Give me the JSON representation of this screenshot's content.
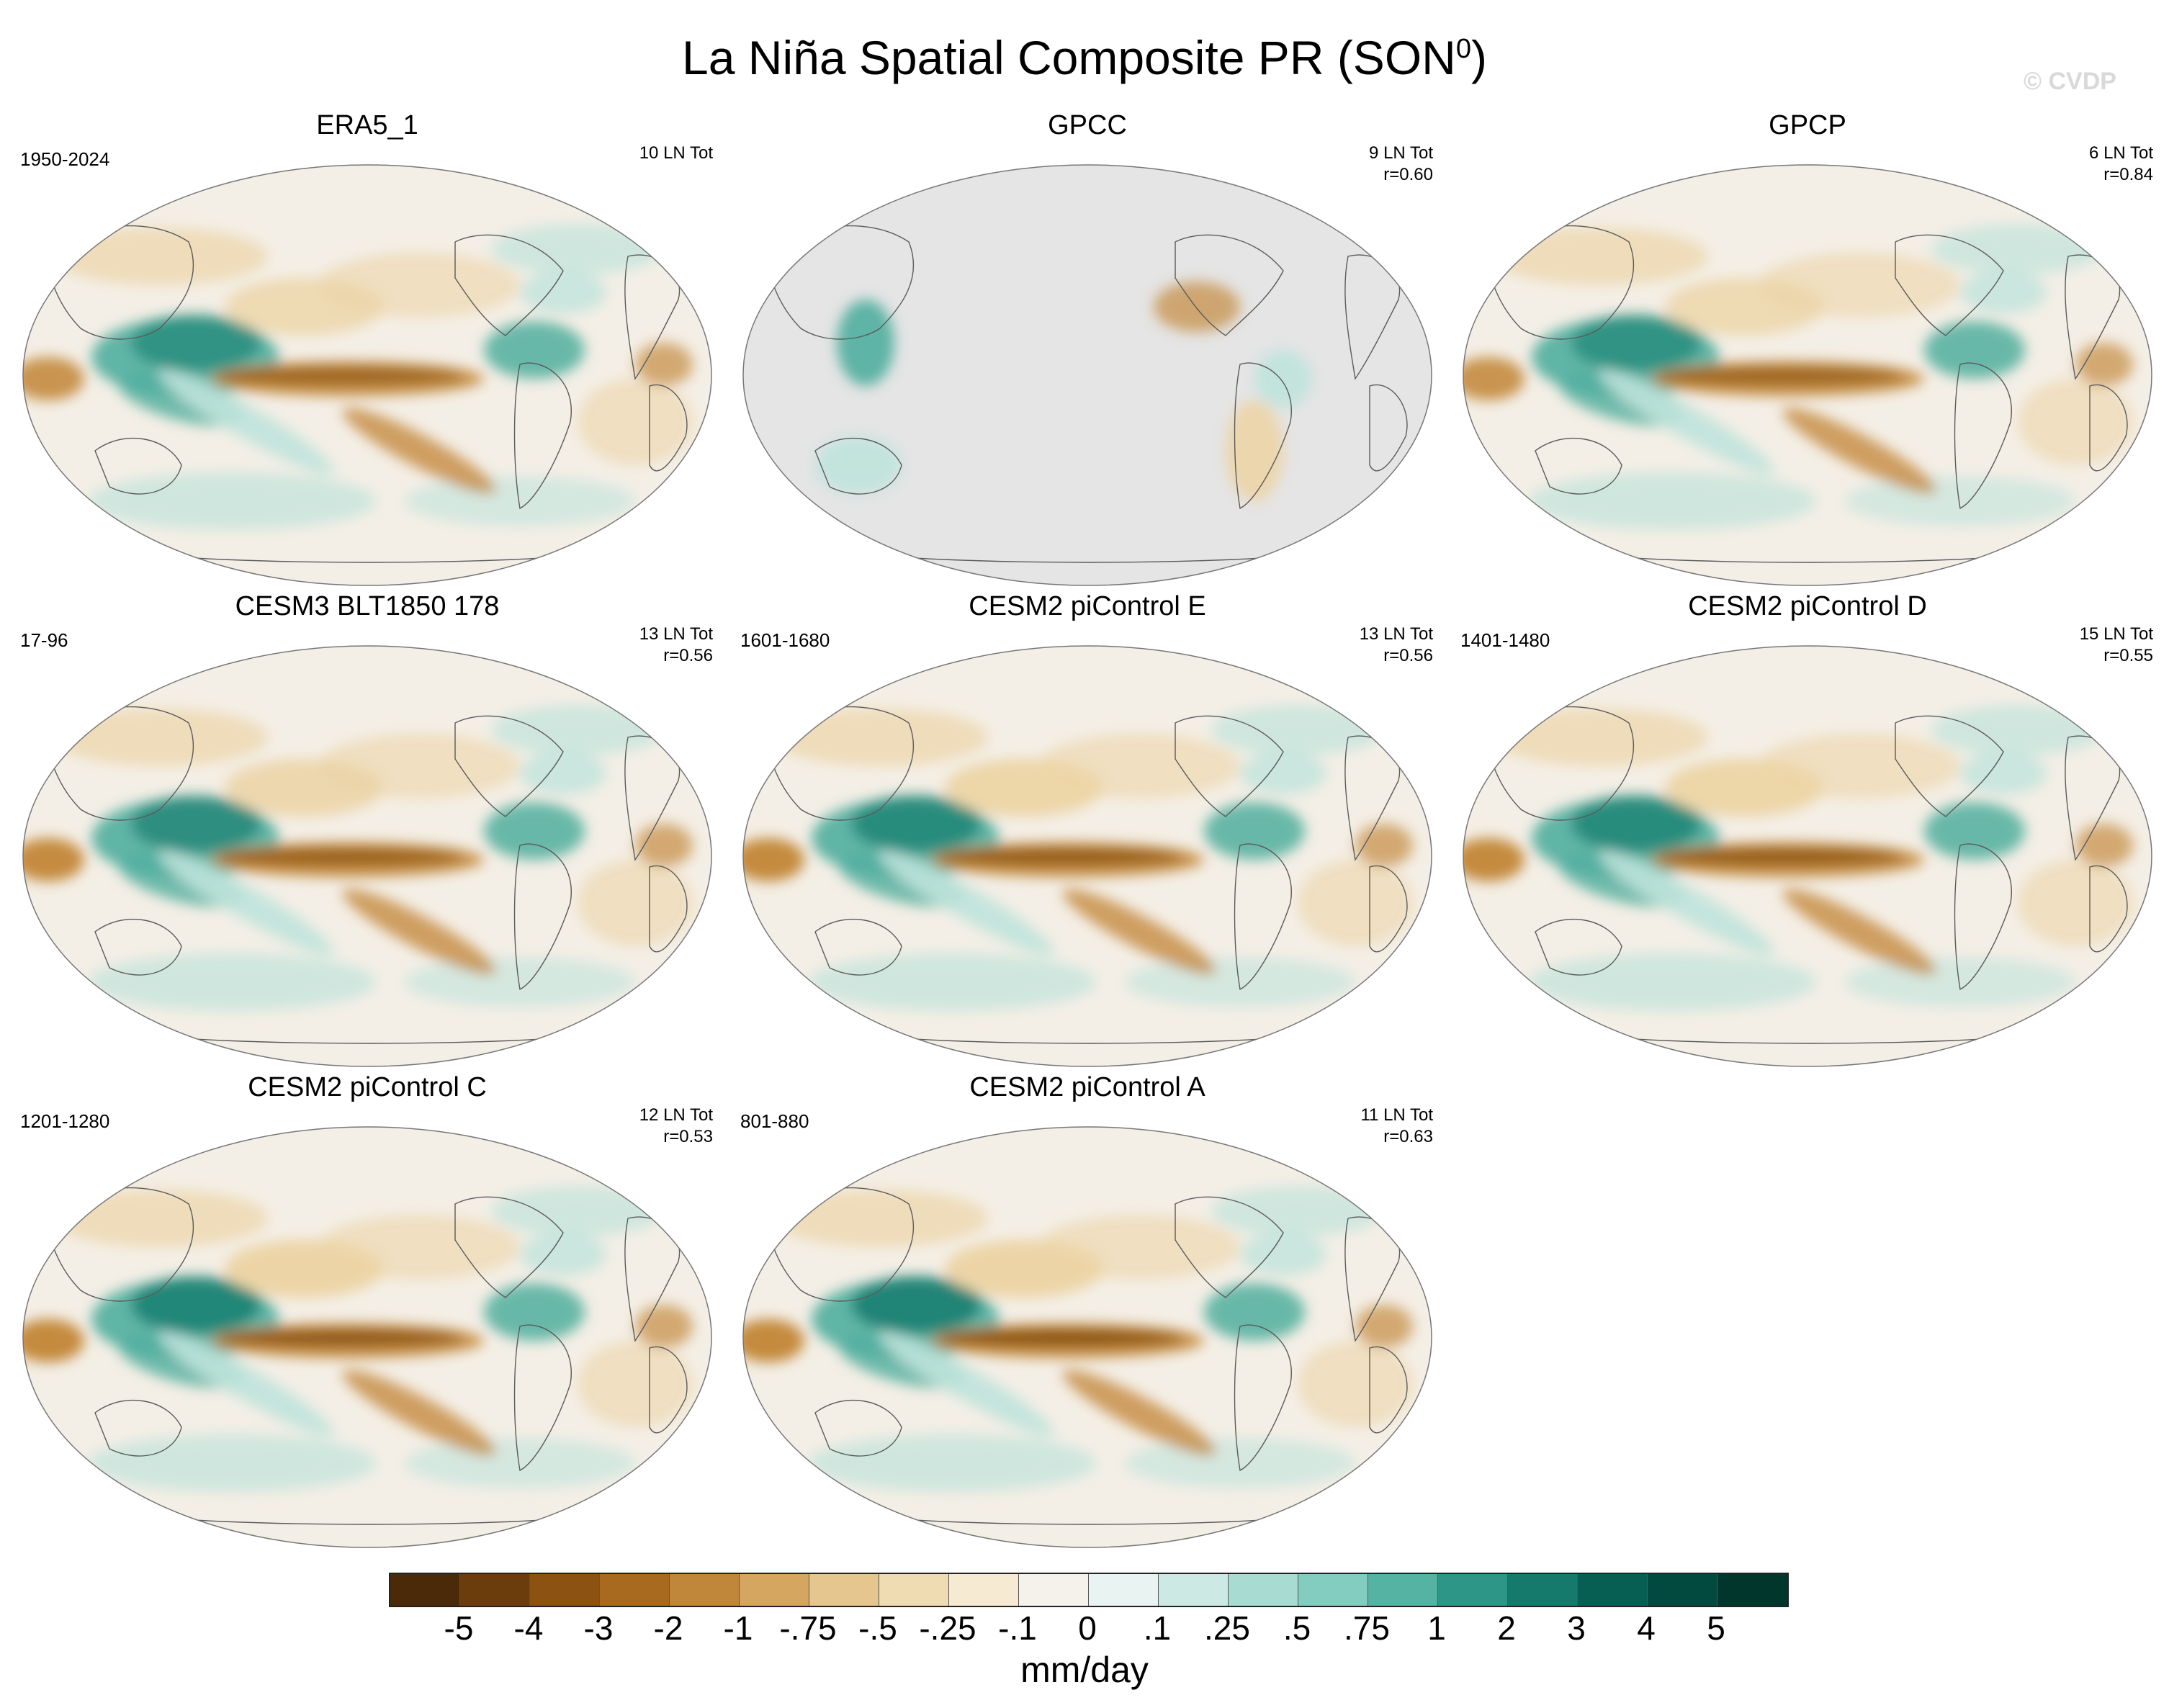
{
  "figure": {
    "title": "La Niña Spatial Composite PR (SON",
    "title_superscript": "0",
    "title_close": ")",
    "watermark": "© CVDP"
  },
  "panels": [
    {
      "title": "ERA5_1",
      "period": "1950-2024",
      "count": "10 LN Tot",
      "corr": "",
      "land_only": false,
      "strength": 1.0
    },
    {
      "title": "GPCC",
      "period": "",
      "count": "9 LN Tot",
      "corr": "r=0.60",
      "land_only": true,
      "strength": 0.7
    },
    {
      "title": "GPCP",
      "period": "",
      "count": "6 LN Tot",
      "corr": "r=0.84",
      "land_only": false,
      "strength": 1.0
    },
    {
      "title": "CESM3 BLT1850 178",
      "period": "17-96",
      "count": "13 LN Tot",
      "corr": "r=0.56",
      "land_only": false,
      "strength": 1.1
    },
    {
      "title": "CESM2 piControl E",
      "period": "1601-1680",
      "count": "13 LN Tot",
      "corr": "r=0.56",
      "land_only": false,
      "strength": 1.2
    },
    {
      "title": "CESM2 piControl D",
      "period": "1401-1480",
      "count": "15 LN Tot",
      "corr": "r=0.55",
      "land_only": false,
      "strength": 1.2
    },
    {
      "title": "CESM2 piControl C",
      "period": "1201-1280",
      "count": "12 LN Tot",
      "corr": "r=0.53",
      "land_only": false,
      "strength": 1.3
    },
    {
      "title": "CESM2 piControl A",
      "period": "801-880",
      "count": "11 LN Tot",
      "corr": "r=0.63",
      "land_only": false,
      "strength": 1.4
    }
  ],
  "colorbar": {
    "units": "mm/day",
    "labels": [
      "-5",
      "-4",
      "-3",
      "-2",
      "-1",
      "-.75",
      "-.5",
      "-.25",
      "-.1",
      "0",
      ".1",
      ".25",
      ".5",
      ".75",
      "1",
      "2",
      "3",
      "4",
      "5"
    ],
    "colors": [
      "#4a2a08",
      "#6b3d0d",
      "#8c5212",
      "#a86a1f",
      "#c0873a",
      "#d4a660",
      "#e5c68f",
      "#f0dcb3",
      "#f6ead3",
      "#f5f2ec",
      "#e9f3f1",
      "#cde9e4",
      "#a8dcd3",
      "#82cdbf",
      "#55b3a3",
      "#2e9686",
      "#157a6c",
      "#075e53",
      "#024a3f",
      "#01362d"
    ]
  },
  "colors": {
    "dry_strong": "#8a5210",
    "dry_mid": "#c48a3e",
    "dry_light": "#ecd4a6",
    "wet_strong": "#127b6c",
    "wet_mid": "#4fae9e",
    "wet_light": "#bfe3dc",
    "background_field": "#f4efe6",
    "missing": "#e5e5e5",
    "coastline": "#5b5b5b"
  }
}
